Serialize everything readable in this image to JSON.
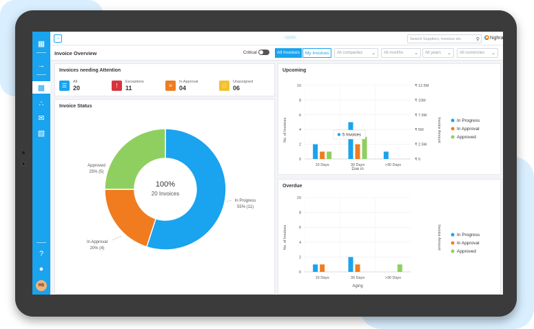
{
  "app": {
    "brand": "highradius",
    "blurred_title": "Apollo",
    "search_placeholder": "Search Suppliers, Invoices etc."
  },
  "avatar_initials": "HS",
  "rail_icons": [
    "apps-grid-icon",
    "arrow-right-icon",
    "dashboard-icon",
    "network-icon",
    "mail-icon",
    "bar-chart-icon",
    "help-icon",
    "bell-icon"
  ],
  "header": {
    "title": "Invoice Overview",
    "critical_label": "Critical",
    "tabs": [
      "All Invoices",
      "My Invoices"
    ],
    "filters": [
      "All companies",
      "All months",
      "All years",
      "All currencies"
    ]
  },
  "attention": {
    "title": "Invoices needing Attention",
    "items": [
      {
        "label": "All",
        "count": "20",
        "color": "#1aa3ee",
        "icon": "list-icon"
      },
      {
        "label": "Exceptions",
        "count": "11",
        "color": "#d9343c",
        "icon": "exclamation-icon"
      },
      {
        "label": "In Approval",
        "count": "04",
        "color": "#f07c1f",
        "icon": "checklist-icon"
      },
      {
        "label": "Unassigned",
        "count": "06",
        "color": "#f2c12e",
        "icon": "unassigned-icon"
      }
    ]
  },
  "status": {
    "title": "Invoice Status",
    "center_value": "100%",
    "center_label": "20 Invoices",
    "slices": [
      {
        "name": "In Progress",
        "pct_label": "55% (11)",
        "value": 11,
        "color": "#1aa3ee"
      },
      {
        "name": "In Approval",
        "pct_label": "20% (4)",
        "value": 4,
        "color": "#f07c1f"
      },
      {
        "name": "Approved",
        "pct_label": "25% (5)",
        "value": 5,
        "color": "#8fcf5f"
      }
    ]
  },
  "upcoming": {
    "title": "Upcoming",
    "ylabel": "No. of Invoices",
    "y2label": "Invoice Amount",
    "xlabel": "Due in",
    "yticks": [
      "0",
      "2",
      "4",
      "6",
      "8",
      "10"
    ],
    "y2ticks": [
      "₹ 0",
      "₹ 2.5M",
      "₹ 5M",
      "₹ 7.5M",
      "₹ 10M",
      "₹ 12.5M"
    ],
    "tooltip": "5 Invoices",
    "legend": [
      "In Progress",
      "In Approval",
      "Approved"
    ]
  },
  "overdue": {
    "title": "Overdue",
    "ylabel": "No. of Invoices",
    "y2label": "Invoice Amount",
    "xlabel": "Aging",
    "yticks": [
      "0",
      "2",
      "4",
      "6",
      "8",
      "10"
    ],
    "legend": [
      "In Progress",
      "In Approval",
      "Approved"
    ]
  },
  "chart_data": [
    {
      "type": "pie",
      "title": "Invoice Status",
      "categories": [
        "In Progress",
        "In Approval",
        "Approved"
      ],
      "values": [
        11,
        4,
        5
      ],
      "colors": [
        "#1aa3ee",
        "#f07c1f",
        "#8fcf5f"
      ]
    },
    {
      "type": "bar",
      "title": "Upcoming",
      "xlabel": "Due in",
      "ylabel": "No. of Invoices",
      "categories": [
        "10 Days",
        "30 Days",
        ">30 Days"
      ],
      "ylim": [
        0,
        10
      ],
      "series": [
        {
          "name": "In Progress",
          "values": [
            2,
            5,
            1
          ],
          "color": "#1aa3ee"
        },
        {
          "name": "In Approval",
          "values": [
            1,
            2,
            0
          ],
          "color": "#f07c1f"
        },
        {
          "name": "Approved",
          "values": [
            1,
            3,
            0
          ],
          "color": "#8fcf5f"
        }
      ]
    },
    {
      "type": "bar",
      "title": "Overdue",
      "xlabel": "Aging",
      "ylabel": "No. of Invoices",
      "categories": [
        "10 Days",
        "30 Days",
        ">30 Days"
      ],
      "ylim": [
        0,
        10
      ],
      "series": [
        {
          "name": "In Progress",
          "values": [
            1,
            2,
            0
          ],
          "color": "#1aa3ee"
        },
        {
          "name": "In Approval",
          "values": [
            1,
            1,
            0
          ],
          "color": "#f07c1f"
        },
        {
          "name": "Approved",
          "values": [
            0,
            0,
            1
          ],
          "color": "#8fcf5f"
        }
      ]
    }
  ]
}
